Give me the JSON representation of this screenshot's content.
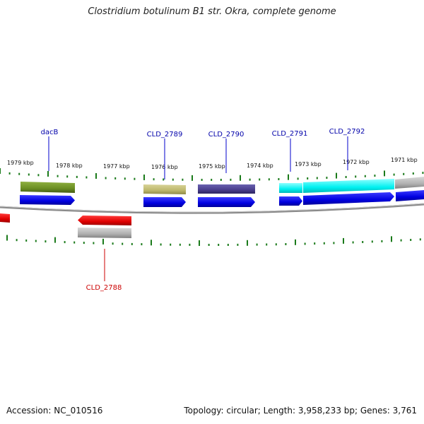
{
  "title": "Clostridium botulinum B1 str. Okra, complete genome",
  "footer": {
    "accession": "Accession: NC_010516",
    "summary": "Topology: circular; Length: 3,958,233 bp; Genes: 3,761"
  },
  "scale_labels": [
    "1979 kbp",
    "1978 kbp",
    "1977 kbp",
    "1976 kbp",
    "1975 kbp",
    "1974 kbp",
    "1973 kbp",
    "1972 kbp",
    "1971 kbp"
  ],
  "gene_labels": [
    {
      "name": "dacB",
      "color": "#0000aa"
    },
    {
      "name": "CLD_2789",
      "color": "#0000aa"
    },
    {
      "name": "CLD_2790",
      "color": "#0000aa"
    },
    {
      "name": "CLD_2791",
      "color": "#0000aa"
    },
    {
      "name": "CLD_2792",
      "color": "#0000aa"
    },
    {
      "name": "CLD_2788",
      "color": "#cc0000"
    }
  ],
  "colors": {
    "forward_cds": "#0000ee",
    "reverse_cds": "#ee0000",
    "backbone": "#888888",
    "tick": "#1a7a1a",
    "feature_olive": "#6b8e23",
    "feature_khaki": "#bdb76b",
    "feature_slate": "#483d8b",
    "feature_cyan": "#00ffff",
    "feature_grey": "#b0b0b0"
  }
}
